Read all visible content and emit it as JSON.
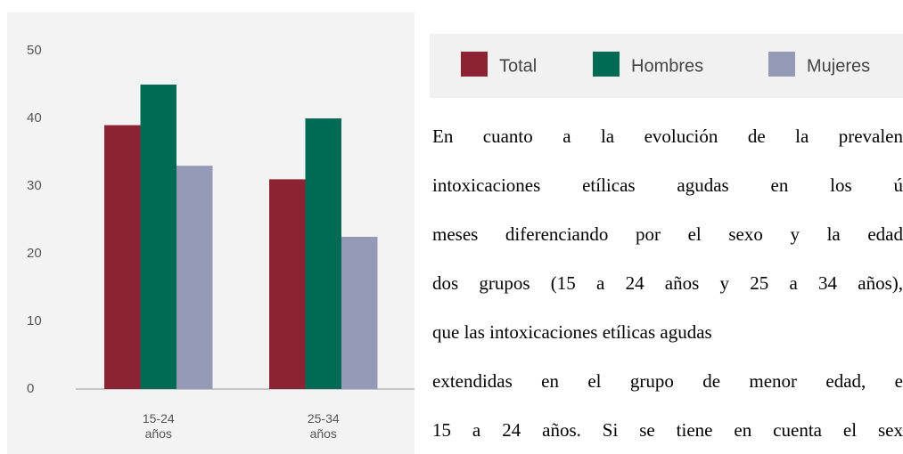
{
  "chart_data": {
    "type": "bar",
    "categories": [
      "15-24 años",
      "25-34 años"
    ],
    "series": [
      {
        "name": "Total",
        "color": "#8b2332",
        "values": [
          39,
          31
        ]
      },
      {
        "name": "Hombres",
        "color": "#006b54",
        "values": [
          45,
          40
        ]
      },
      {
        "name": "Mujeres",
        "color": "#9499b5",
        "values": [
          33,
          22.5
        ]
      }
    ],
    "ylim": [
      0,
      50
    ],
    "yticks": [
      0,
      10,
      20,
      30,
      40,
      50
    ],
    "grid": false
  },
  "paragraph_lines": [
    "En cuanto a la evolución de la prevalen",
    "intoxicaciones etílicas agudas en los ú",
    "meses diferenciando por el sexo y la edad",
    "dos grupos (15 a 24 años y 25 a 34 años),",
    "que las intoxicaciones etílicas agudas",
    "extendidas en el grupo de menor edad, e",
    "15 a 24 años. Si se tiene en cuenta el sex"
  ]
}
